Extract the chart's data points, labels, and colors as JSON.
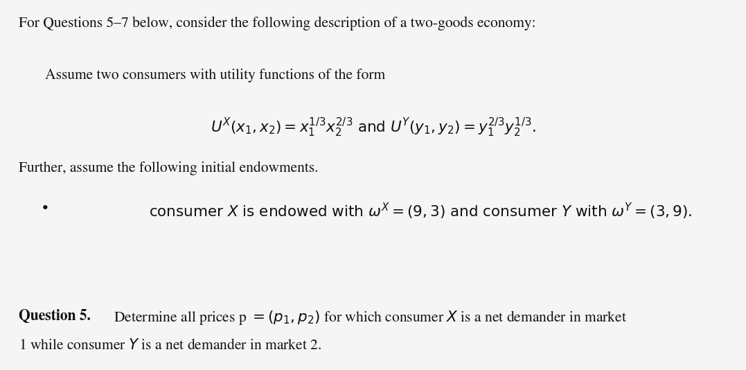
{
  "background_color": "#f5f5f5",
  "figsize": [
    10.77,
    5.34
  ],
  "dpi": 100,
  "line1": "For Questions 5–7 below, consider the following description of a two-goods economy:",
  "line2": "Assume two consumers with utility functions of the form",
  "math_utility": "$U^X(x_1, x_2) = x_1^{1/3}x_2^{2/3}$ and $U^Y(y_1, y_2) = y_1^{2/3}y_2^{1/3}$.",
  "line3": "Further, assume the following initial endowments.",
  "line4": "consumer $X$ is endowed with $\\omega^X = (9, 3)$ and consumer $Y$ with $\\omega^Y = (3, 9)$.",
  "line5_bold": "Question 5.",
  "line5_rest": " Determine all prices p $= (p_1, p_2)$ for which consumer $X$ is a net demander in market",
  "line6": "1 while consumer $Y$ is a net demander in market 2.",
  "font_size_body": 15.5,
  "text_color": "#111111"
}
